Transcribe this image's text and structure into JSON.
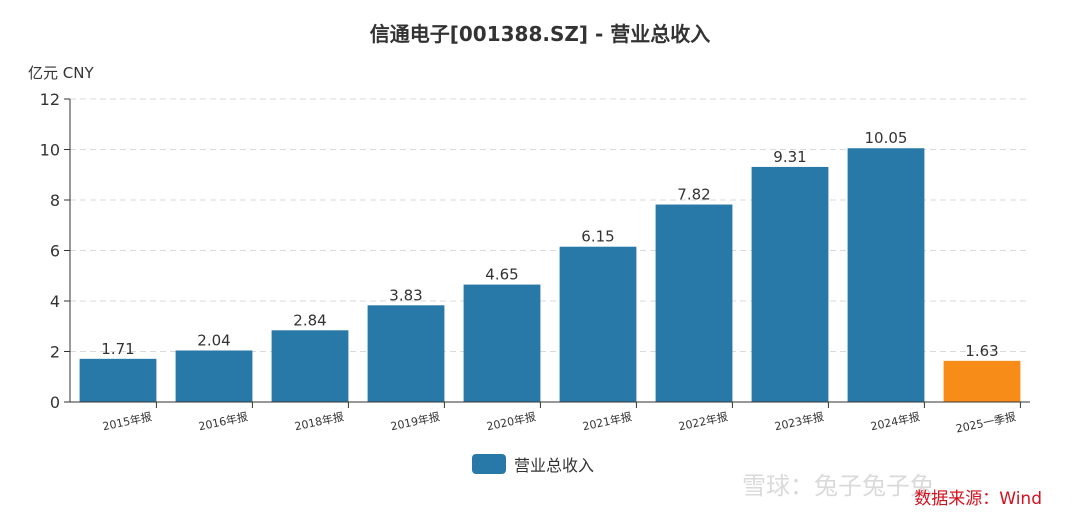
{
  "title": "信通电子[001388.SZ] - 营业总收入",
  "unit": "亿元  CNY",
  "source": "数据来源：Wind",
  "watermark": "雪球：兔子兔子兔",
  "colors": {
    "primary": "#2878a8",
    "highlight": "#f88c18"
  },
  "chart_data": {
    "type": "bar",
    "title": "信通电子[001388.SZ] - 营业总收入",
    "ylabel": "亿元  CNY",
    "ylim": [
      0,
      12
    ],
    "yticks": [
      0,
      2,
      4,
      6,
      8,
      10,
      12
    ],
    "grid": true,
    "legend_position": "bottom-center",
    "categories": [
      "2015年报",
      "2016年报",
      "2018年报",
      "2019年报",
      "2020年报",
      "2021年报",
      "2022年报",
      "2023年报",
      "2024年报",
      "2025一季报"
    ],
    "series": [
      {
        "name": "营业总收入",
        "values": [
          1.71,
          2.04,
          2.84,
          3.83,
          4.65,
          6.15,
          7.82,
          9.31,
          10.05,
          1.63
        ],
        "labels": [
          "1.71",
          "2.04",
          "2.84",
          "3.83",
          "4.65",
          "6.15",
          "7.82",
          "9.31",
          "10.05",
          "1.63"
        ]
      }
    ],
    "highlight_index": 9
  }
}
